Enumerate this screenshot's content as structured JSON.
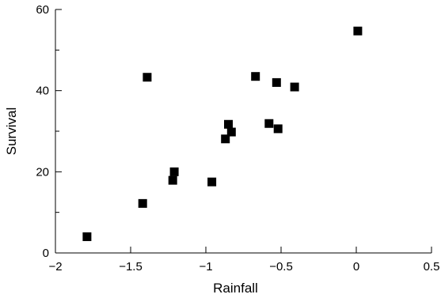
{
  "chart_data": {
    "type": "scatter",
    "title": "",
    "xlabel": "Rainfall",
    "ylabel": "Survival",
    "xlim": [
      -2,
      0.5
    ],
    "ylim": [
      0,
      60
    ],
    "x_major_ticks": [
      -2,
      -1.5,
      -1,
      -0.5,
      0,
      0.5
    ],
    "x_tick_labels": [
      "−2",
      "−1.5",
      "−1",
      "−0.5",
      "0",
      "0.5"
    ],
    "y_major_ticks": [
      0,
      20,
      40,
      60
    ],
    "y_tick_labels": [
      "0",
      "20",
      "40",
      "60"
    ],
    "y_minor_ticks": [
      10,
      30,
      50
    ],
    "grid": false,
    "legend": "none",
    "marker": "square",
    "marker_color": "#000000",
    "series": [
      {
        "points": [
          {
            "x": -1.79,
            "y": 4
          },
          {
            "x": -1.42,
            "y": 12.2
          },
          {
            "x": -1.39,
            "y": 43.3
          },
          {
            "x": -1.22,
            "y": 17.9
          },
          {
            "x": -1.21,
            "y": 20
          },
          {
            "x": -0.96,
            "y": 17.5
          },
          {
            "x": -0.87,
            "y": 28.1
          },
          {
            "x": -0.85,
            "y": 31.7
          },
          {
            "x": -0.83,
            "y": 29.8
          },
          {
            "x": -0.67,
            "y": 43.5
          },
          {
            "x": -0.58,
            "y": 31.9
          },
          {
            "x": -0.53,
            "y": 42
          },
          {
            "x": -0.52,
            "y": 30.6
          },
          {
            "x": -0.41,
            "y": 40.9
          },
          {
            "x": 0.01,
            "y": 54.7
          }
        ]
      }
    ]
  }
}
